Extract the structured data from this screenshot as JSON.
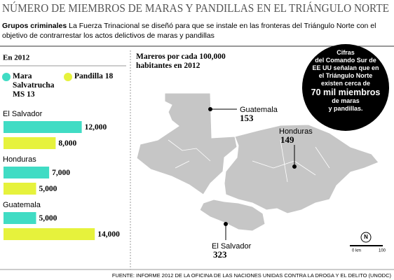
{
  "header": {
    "title": "NÚMERO DE MIEMBROS DE MARAS Y PANDILLAS EN EL TRIÁNGULO NORTE",
    "subtitle_lead": "Grupos criminales",
    "subtitle": "La Fuerza Trinacional se diseñó para que se instale en las fronteras del Triángulo Norte con el objetivo de contrarrestar los actos delictivos de maras y pandillas"
  },
  "chart_data": {
    "type": "bar",
    "title": "En 2012",
    "categories": [
      "El Salvador",
      "Honduras",
      "Guatemala"
    ],
    "series": [
      {
        "name": "Mara Salvatrucha MS 13",
        "color": "#40dcc4",
        "values": [
          12000,
          7000,
          5000
        ],
        "value_labels": [
          "12,000",
          "7,000",
          "5,000"
        ]
      },
      {
        "name": "Pandilla 18",
        "color": "#e6f23c",
        "values": [
          8000,
          5000,
          14000
        ],
        "value_labels": [
          "8,000",
          "5,000",
          "14,000"
        ]
      }
    ]
  },
  "map": {
    "title": "Mareros por cada 100,000 habitantes en 2012",
    "regions": [
      {
        "name": "Guatemala",
        "value": 153
      },
      {
        "name": "Honduras",
        "value": 149
      },
      {
        "name": "El Salvador",
        "value": 323
      }
    ],
    "north": "N",
    "scale_labels": [
      "0 km",
      "100"
    ]
  },
  "callout": {
    "lines": [
      "Cifras",
      "del Comando Sur de",
      "EE UU señalan que en",
      "el Triángulo Norte",
      "existen cerca de",
      "70 mil miembros",
      "de maras",
      "y pandillas."
    ]
  },
  "source": "FUENTE: INFORME 2012 DE LA OFICINA DE LAS NACIONES UNIDAS CONTRA LA DROGA Y EL DELITO (UNODC)"
}
